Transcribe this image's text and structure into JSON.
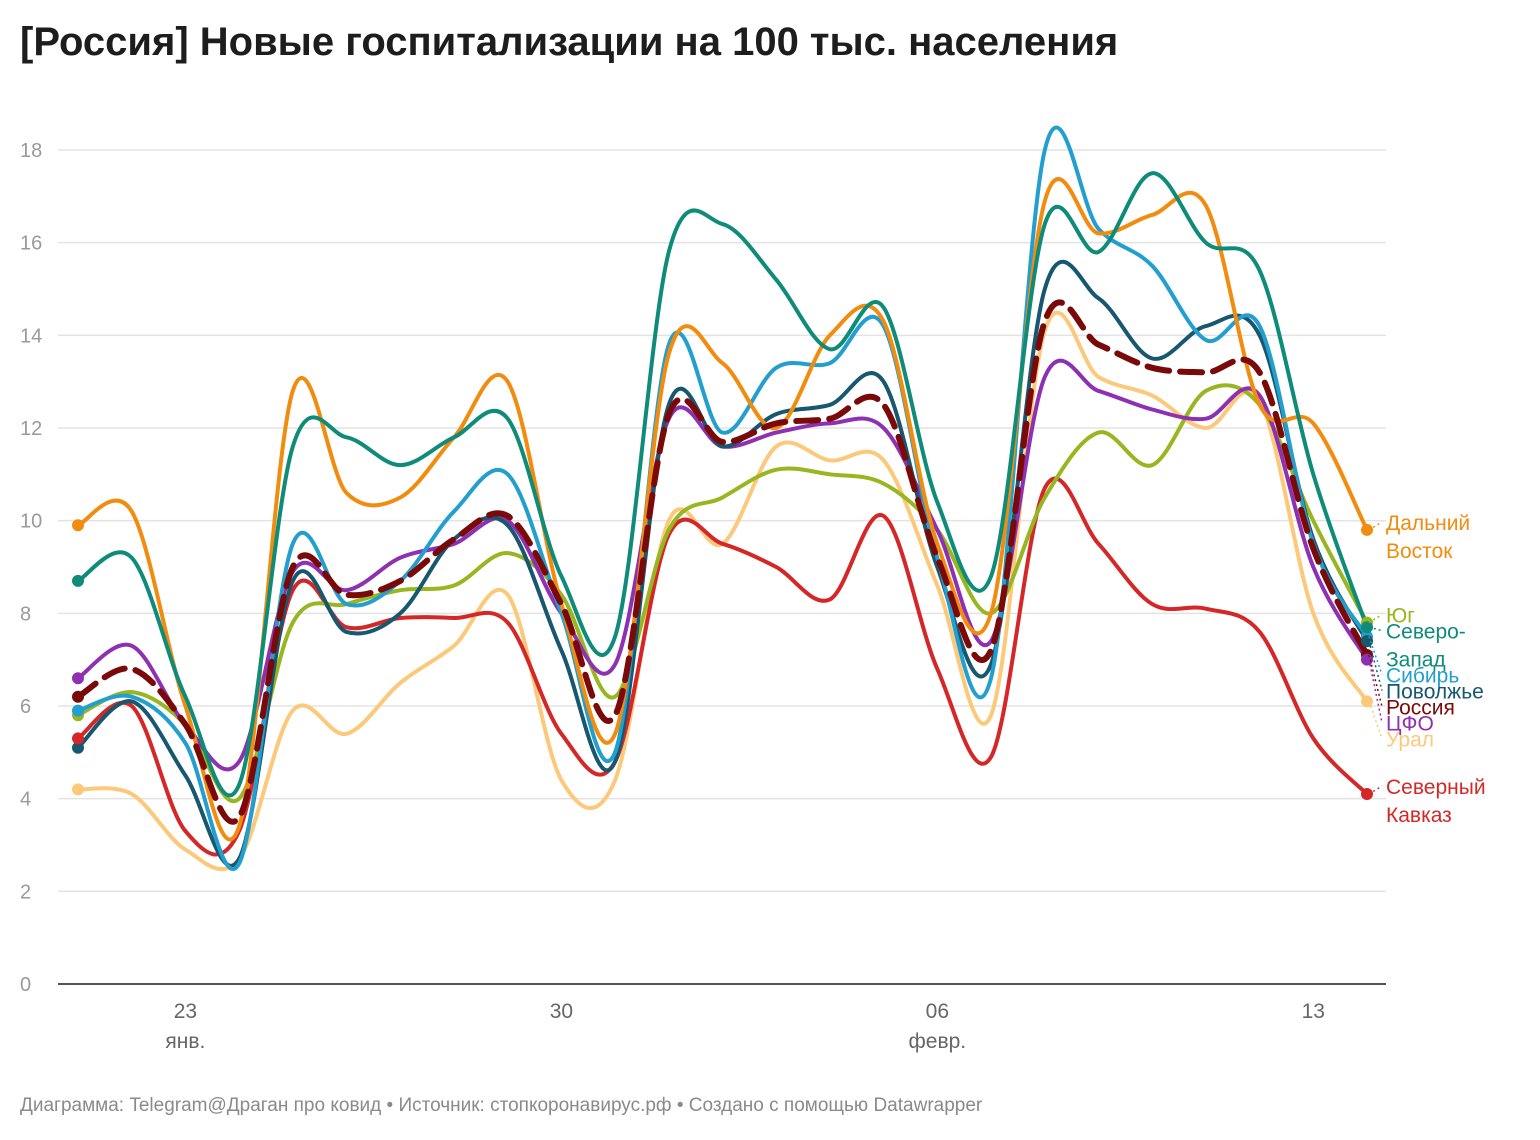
{
  "title": "[Россия] Новые госпитализации на 100 тыс. населения",
  "footer": "Диаграмма: Telegram@Драган про ковид • Источник: стопкоронавирус.рф • Создано с помощью Datawrapper",
  "chart_data": {
    "type": "line",
    "title": "[Россия] Новые госпитализации на 100 тыс. населения",
    "xlabel": "",
    "ylabel": "",
    "ylim": [
      0,
      18
    ],
    "yticks": [
      0,
      2,
      4,
      6,
      8,
      10,
      12,
      14,
      16,
      18
    ],
    "grid": true,
    "legend": "right (direct labels at line ends)",
    "x": [
      "21.01",
      "22.01",
      "23.01",
      "24.01",
      "25.01",
      "26.01",
      "27.01",
      "28.01",
      "29.01",
      "30.01",
      "31.01",
      "01.02",
      "02.02",
      "03.02",
      "04.02",
      "05.02",
      "06.02",
      "07.02",
      "08.02",
      "09.02",
      "10.02",
      "11.02",
      "12.02",
      "13.02",
      "14.02"
    ],
    "xticks": [
      {
        "x": "23.01",
        "label": "23",
        "sublabel": "янв."
      },
      {
        "x": "30.01",
        "label": "30",
        "sublabel": ""
      },
      {
        "x": "06.02",
        "label": "06",
        "sublabel": "февр."
      },
      {
        "x": "13.02",
        "label": "13",
        "sublabel": ""
      }
    ],
    "series": [
      {
        "name": "Дальний Восток",
        "color": "#f28c0f",
        "dashed": false,
        "values": [
          9.9,
          10.2,
          6.0,
          3.4,
          12.8,
          10.6,
          10.5,
          11.8,
          13.0,
          8.2,
          5.4,
          13.6,
          13.4,
          12.0,
          14.0,
          14.3,
          9.5,
          8.0,
          16.9,
          16.2,
          16.6,
          16.8,
          12.5,
          12.1,
          9.8
        ]
      },
      {
        "name": "Юг",
        "color": "#98b61f",
        "dashed": false,
        "values": [
          5.8,
          6.3,
          5.6,
          4.0,
          7.8,
          8.2,
          8.5,
          8.6,
          9.3,
          8.4,
          6.2,
          9.8,
          10.5,
          11.1,
          11.0,
          10.8,
          9.8,
          8.0,
          10.5,
          11.9,
          11.2,
          12.8,
          12.5,
          10.0,
          7.8
        ]
      },
      {
        "name": "Сибирь",
        "color": "#239fcf",
        "dashed": false,
        "values": [
          5.9,
          6.2,
          5.2,
          2.6,
          9.5,
          8.2,
          8.7,
          10.2,
          11.0,
          8.0,
          5.0,
          13.8,
          11.9,
          13.3,
          13.4,
          14.2,
          9.2,
          6.6,
          18.0,
          16.3,
          15.5,
          13.9,
          14.2,
          9.5,
          7.5
        ]
      },
      {
        "name": "Поволжье",
        "color": "#17576f",
        "dashed": false,
        "values": [
          5.1,
          6.1,
          4.5,
          2.7,
          8.7,
          7.6,
          8.0,
          9.6,
          9.9,
          7.2,
          4.8,
          12.5,
          11.6,
          12.3,
          12.5,
          13.0,
          9.0,
          6.9,
          15.0,
          14.8,
          13.5,
          14.2,
          14.0,
          9.6,
          7.4
        ]
      },
      {
        "name": "Северо-Запад",
        "color": "#0e8c79",
        "dashed": false,
        "values": [
          8.7,
          9.2,
          6.2,
          4.3,
          11.6,
          11.8,
          11.2,
          11.8,
          12.2,
          8.8,
          7.5,
          15.8,
          16.4,
          15.2,
          13.7,
          14.6,
          10.4,
          8.8,
          16.4,
          15.8,
          17.5,
          16.0,
          15.4,
          11.0,
          7.7
        ]
      },
      {
        "name": "Россия",
        "color": "#7a0a0a",
        "dashed": true,
        "values": [
          6.2,
          6.8,
          5.6,
          3.6,
          9.0,
          8.4,
          8.7,
          9.6,
          10.1,
          8.2,
          5.8,
          12.3,
          11.7,
          12.1,
          12.2,
          12.5,
          9.2,
          7.2,
          14.3,
          13.8,
          13.3,
          13.2,
          13.2,
          9.4,
          7.1
        ]
      },
      {
        "name": "ЦФО",
        "color": "#8e30b2",
        "dashed": false,
        "values": [
          6.6,
          7.3,
          5.6,
          4.8,
          8.9,
          8.5,
          9.2,
          9.5,
          10.0,
          8.0,
          6.9,
          12.2,
          11.6,
          11.9,
          12.1,
          12.0,
          9.8,
          7.4,
          13.1,
          12.8,
          12.4,
          12.2,
          12.7,
          9.0,
          7.0
        ]
      },
      {
        "name": "Урал",
        "color": "#fcc97b",
        "dashed": false,
        "values": [
          4.2,
          4.1,
          2.9,
          2.7,
          5.9,
          5.4,
          6.5,
          7.3,
          8.4,
          4.4,
          4.4,
          10.0,
          9.5,
          11.6,
          11.3,
          11.3,
          8.6,
          5.8,
          14.1,
          13.1,
          12.7,
          12.0,
          12.6,
          8.0,
          6.1
        ]
      },
      {
        "name": "Северный Кавказ",
        "color": "#d42828",
        "dashed": false,
        "values": [
          5.3,
          6.0,
          3.3,
          3.3,
          8.5,
          7.7,
          7.9,
          7.9,
          7.8,
          5.4,
          4.8,
          9.7,
          9.5,
          9.0,
          8.3,
          10.1,
          6.8,
          4.9,
          10.7,
          9.5,
          8.2,
          8.1,
          7.6,
          5.3,
          4.1
        ]
      }
    ],
    "labels": [
      {
        "series": "Дальний Восток",
        "lines": [
          "Дальний",
          "Восток"
        ]
      },
      {
        "series": "Юг",
        "lines": [
          "Юг"
        ]
      },
      {
        "series": "Сибирь",
        "lines": [
          "Сибирь"
        ]
      },
      {
        "series": "Поволжье",
        "lines": [
          "Поволжье"
        ]
      },
      {
        "series": "Северо-Запад",
        "lines": [
          "Северо-",
          "Запад"
        ]
      },
      {
        "series": "Россия",
        "lines": [
          "Россия"
        ]
      },
      {
        "series": "ЦФО",
        "lines": [
          "ЦФО"
        ]
      },
      {
        "series": "Урал",
        "lines": [
          "Урал"
        ]
      },
      {
        "series": "Северный Кавказ",
        "lines": [
          "Северный",
          "Кавказ"
        ]
      }
    ]
  }
}
